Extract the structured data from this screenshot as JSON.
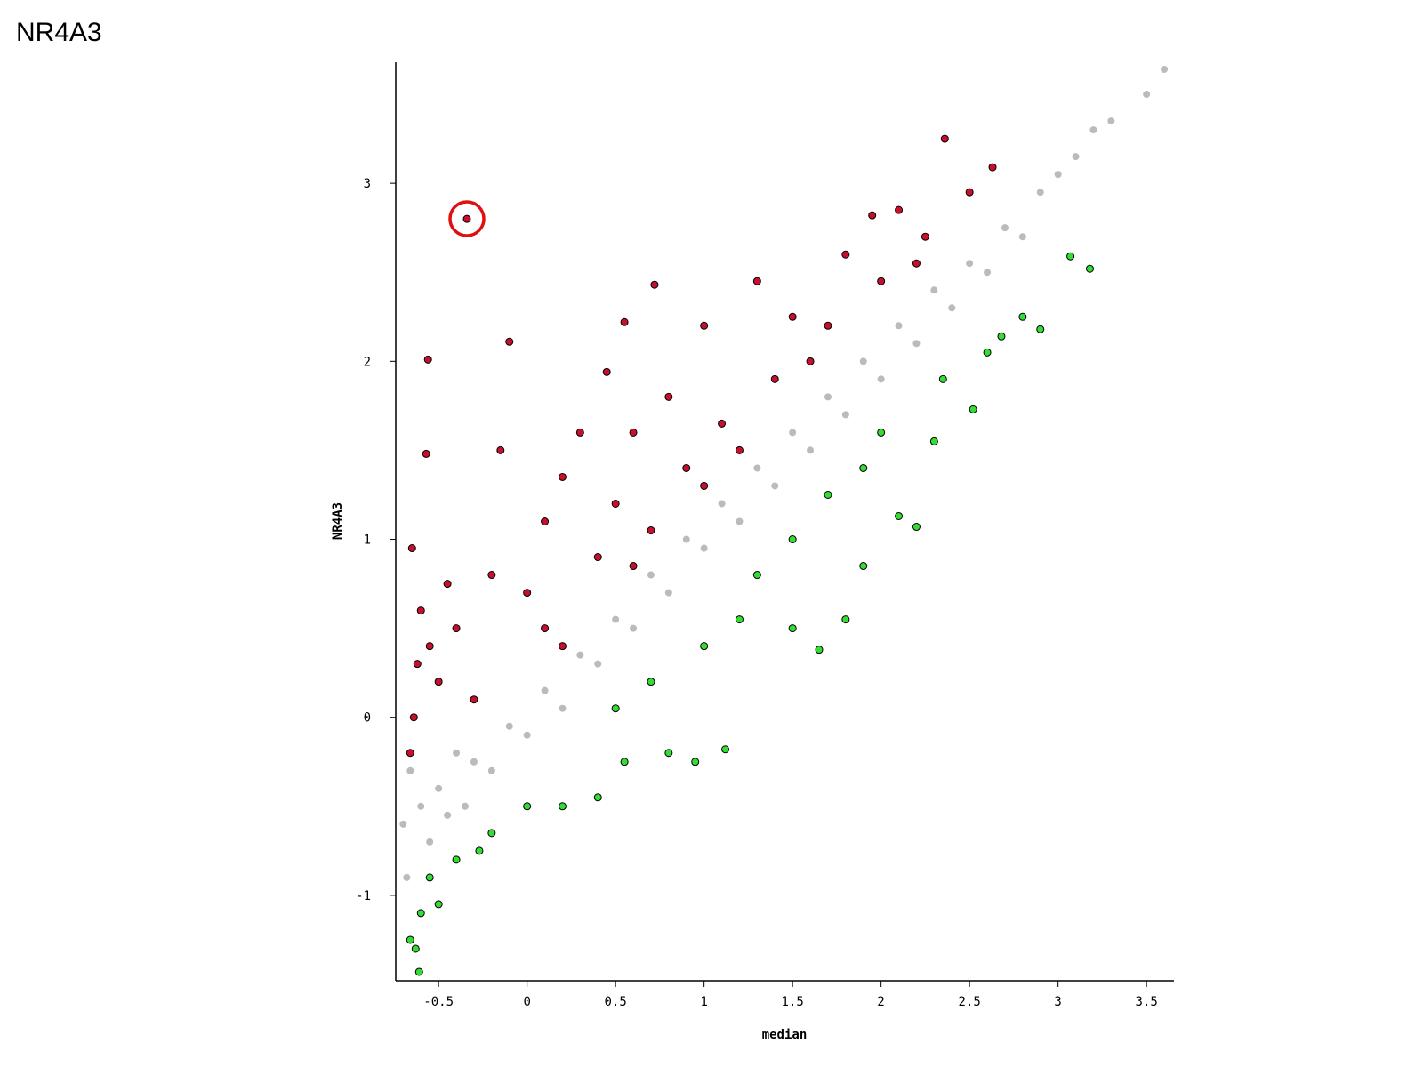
{
  "chart_data": {
    "type": "scatter",
    "title": "NR4A3",
    "x_label": "median",
    "y_label": "NR4A3",
    "xlim": [
      -0.742,
      3.655
    ],
    "ylim": [
      -1.48,
      3.68
    ],
    "xticks": [
      -0.5,
      0,
      0.5,
      1,
      1.5,
      2,
      2.5,
      3,
      3.5
    ],
    "yticks": [
      -1,
      0,
      1,
      2,
      3
    ],
    "series": [
      {
        "color": "#bbbbbb",
        "x": [
          -0.7,
          -0.68,
          -0.66,
          -0.6,
          -0.55,
          -0.5,
          -0.45,
          -0.4,
          -0.35,
          -0.3,
          -0.2,
          -0.1,
          0,
          0.1,
          0.2,
          0.3,
          0.4,
          0.5,
          0.6,
          0.7,
          0.8,
          0.9,
          1.0,
          1.1,
          1.2,
          1.3,
          1.4,
          1.5,
          1.6,
          1.7,
          1.8,
          1.9,
          2.0,
          2.1,
          2.2,
          2.3,
          2.4,
          2.5,
          2.6,
          2.7,
          2.8,
          2.9,
          3.0,
          3.1,
          3.2,
          3.3,
          3.5,
          3.6
        ],
        "values": [
          -0.6,
          -0.9,
          -0.3,
          -0.5,
          -0.7,
          -0.4,
          -0.55,
          -0.2,
          -0.5,
          -0.25,
          -0.3,
          -0.05,
          -0.1,
          0.15,
          0.05,
          0.35,
          0.3,
          0.55,
          0.5,
          0.8,
          0.7,
          1.0,
          0.95,
          1.2,
          1.1,
          1.4,
          1.3,
          1.6,
          1.5,
          1.8,
          1.7,
          2.0,
          1.9,
          2.2,
          2.1,
          2.4,
          2.3,
          2.55,
          2.5,
          2.75,
          2.7,
          2.95,
          3.05,
          3.15,
          3.3,
          3.35,
          3.5,
          3.64
        ]
      },
      {
        "color": "#c8102e",
        "x": [
          -0.34,
          2.36,
          2.63,
          -0.56,
          -0.1,
          0.72,
          0.55,
          0.45,
          -0.57,
          -0.15,
          0.2,
          0.1,
          0.3,
          0.6,
          0.8,
          1.3,
          1.0,
          1.5,
          1.8,
          2.1,
          1.95,
          2.25,
          2.5,
          -0.65,
          -0.6,
          -0.62,
          -0.64,
          -0.66,
          -0.5,
          -0.4,
          -0.3,
          -0.2,
          0,
          0.2,
          0.4,
          0.5,
          0.7,
          0.9,
          1.1,
          1.2,
          1.4,
          1.6,
          1.7,
          2.0,
          2.2,
          -0.55,
          -0.45,
          0.1,
          0.6,
          1.0
        ],
        "values": [
          2.8,
          3.25,
          3.09,
          2.01,
          2.11,
          2.43,
          2.22,
          1.94,
          1.48,
          1.5,
          1.35,
          1.1,
          1.6,
          1.6,
          1.8,
          2.45,
          2.2,
          2.25,
          2.6,
          2.85,
          2.82,
          2.7,
          2.95,
          0.95,
          0.6,
          0.3,
          0.0,
          -0.2,
          0.2,
          0.5,
          0.1,
          0.8,
          0.7,
          0.4,
          0.9,
          1.2,
          1.05,
          1.4,
          1.65,
          1.5,
          1.9,
          2.0,
          2.2,
          2.45,
          2.55,
          0.4,
          0.75,
          0.5,
          0.85,
          1.3
        ]
      },
      {
        "color": "#33dd33",
        "x": [
          3.18,
          3.07,
          2.9,
          2.8,
          2.68,
          2.52,
          2.35,
          2.2,
          2.1,
          1.9,
          1.8,
          1.65,
          1.5,
          1.12,
          0.95,
          0.8,
          0.55,
          0.4,
          0.2,
          0.0,
          -0.2,
          -0.27,
          -0.4,
          -0.55,
          -0.6,
          -0.63,
          -0.61,
          -0.66,
          -0.5,
          1.3,
          1.5,
          1.7,
          1.9,
          2.0,
          2.3,
          1.0,
          0.7,
          0.5,
          1.2,
          2.6
        ],
        "values": [
          2.52,
          2.59,
          2.18,
          2.25,
          2.14,
          1.73,
          1.9,
          1.07,
          1.13,
          0.85,
          0.55,
          0.38,
          0.5,
          -0.18,
          -0.25,
          -0.2,
          -0.25,
          -0.45,
          -0.5,
          -0.5,
          -0.65,
          -0.75,
          -0.8,
          -0.9,
          -1.1,
          -1.3,
          -1.43,
          -1.25,
          -1.05,
          0.8,
          1.0,
          1.25,
          1.4,
          1.6,
          1.55,
          0.4,
          0.2,
          0.05,
          0.55,
          2.05
        ]
      }
    ]
  }
}
